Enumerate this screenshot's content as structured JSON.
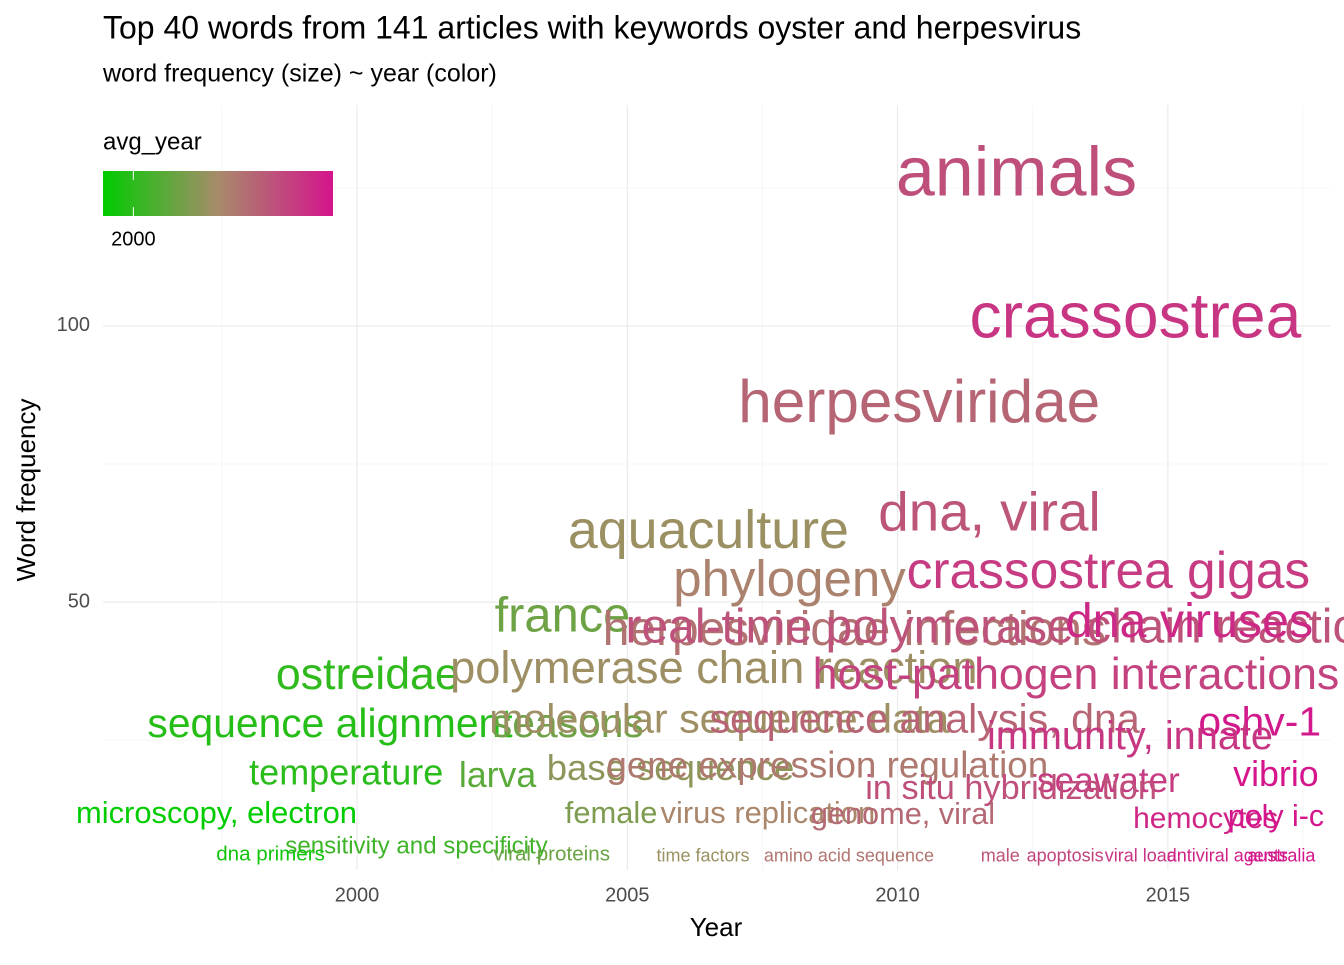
{
  "chart_data": {
    "type": "text_scatter",
    "title": "Top 40 words from 141 articles with keywords oyster and herpesvirus",
    "subtitle": "word frequency (size) ~ year (color)",
    "x_label": "Year",
    "y_label": "Word frequency",
    "legend_title": "avg_year",
    "color_lim": [
      1997.4,
      2017.1
    ],
    "color_ticks": [
      2000
    ],
    "colors": [
      "#00cc00",
      "#a88b6a",
      "#d4148c"
    ],
    "xlim": [
      1995.3,
      2018.0
    ],
    "xticks": [
      2000,
      2005,
      2010,
      2015
    ],
    "ylim": [
      1.5,
      140
    ],
    "yticks": [
      50,
      100
    ],
    "grid": true,
    "labels": [
      "animals",
      "crassostrea",
      "herpesviridae",
      "dna, viral",
      "aquaculture",
      "crassostrea gigas",
      "phylogeny",
      "france",
      "herpesviridae infections",
      "real-time polymerase chain reaction",
      "dna viruses",
      "ostreidae",
      "polymerase chain reaction",
      "host-pathogen interactions",
      "sequence alignment",
      "seasons",
      "molecular sequence data",
      "sequence analysis, dna",
      "oshv-1",
      "immunity, innate",
      "temperature",
      "larva",
      "base sequence",
      "gene expression regulation",
      "seawater",
      "in situ hybridization",
      "vibrio",
      "microscopy, electron",
      "female",
      "virus replication",
      "genome, viral",
      "hemocytes",
      "poly i-c",
      "sensitivity and specificity",
      "dna primers",
      "viral proteins",
      "time factors",
      "amino acid sequence",
      "male",
      "apoptosis",
      "viral load",
      "antiviral agents",
      "australia"
    ],
    "x": [
      2012.2,
      2014.4,
      2010.4,
      2011.7,
      2006.5,
      2013.9,
      2008.0,
      2003.8,
      2009.2,
      2012.0,
      2015.4,
      2000.2,
      2006.6,
      2013.3,
      1999.5,
      2003.9,
      2006.7,
      2010.5,
      2016.7,
      2014.3,
      1999.8,
      2002.6,
      2005.8,
      2008.7,
      2013.9,
      2012.1,
      2017.0,
      1997.4,
      2004.7,
      2007.6,
      2010.1,
      2015.7,
      2017.0,
      2001.1,
      1998.4,
      2003.6,
      2006.4,
      2009.1,
      2011.9,
      2013.1,
      2014.5,
      2016.1,
      2017.1
    ],
    "values": [
      127,
      101,
      85.5,
      65.6,
      62.4,
      55,
      53.5,
      47,
      44.5,
      45,
      46,
      36.4,
      37.5,
      36.4,
      27.5,
      27.5,
      28.4,
      28.4,
      27.8,
      25.3,
      18.7,
      18.2,
      19.5,
      20,
      17.3,
      16,
      18.4,
      11.5,
      11.5,
      11.5,
      11.3,
      10.5,
      10.9,
      5.6,
      4.2,
      4.2,
      3.9,
      3.9,
      3.9,
      3.9,
      3.9,
      3.9,
      3.9
    ]
  }
}
